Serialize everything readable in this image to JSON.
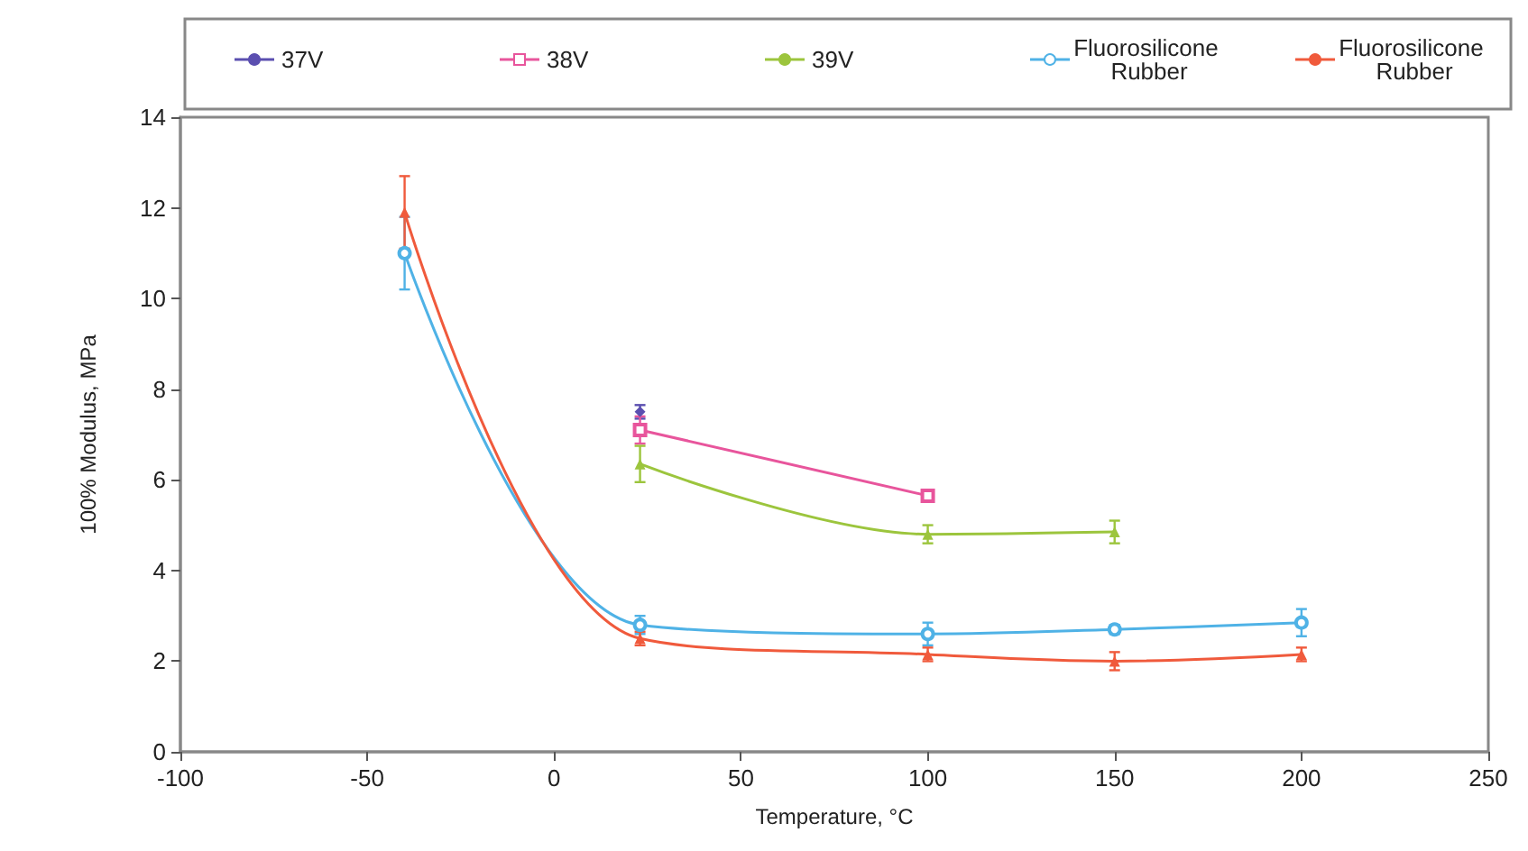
{
  "chart_data": {
    "type": "line",
    "xlabel": "Temperature, °C",
    "ylabel": "100% Modulus, MPa",
    "xlim": [
      -100,
      250
    ],
    "xticks": [
      -100,
      -50,
      0,
      50,
      100,
      150,
      200,
      250
    ],
    "ylim": [
      0,
      14
    ],
    "yticks": [
      0,
      2,
      4,
      6,
      8,
      10,
      12,
      14
    ],
    "grid": false,
    "legend": "top",
    "line_style": "solid",
    "series": [
      {
        "name": "37V",
        "color": "#5b4fb0",
        "marker": "diamond",
        "x": [
          23
        ],
        "values": [
          7.5
        ],
        "errors": [
          0.15
        ]
      },
      {
        "name": "38V",
        "color": "#e8559c",
        "marker": "square",
        "x": [
          23,
          100
        ],
        "values": [
          7.1,
          5.65
        ],
        "errors": [
          0.3,
          0.1
        ]
      },
      {
        "name": "39V",
        "color": "#9cc53d",
        "marker": "triangle",
        "x": [
          23,
          100,
          150
        ],
        "values": [
          6.35,
          4.8,
          4.85
        ],
        "errors": [
          0.4,
          0.2,
          0.25
        ]
      },
      {
        "name": "Fluorosilicone Rubber",
        "color": "#4fb2e6",
        "marker": "circle",
        "x": [
          -40,
          23,
          100,
          150,
          200
        ],
        "values": [
          11.0,
          2.8,
          2.6,
          2.7,
          2.85
        ],
        "errors": [
          0.8,
          0.2,
          0.25,
          0.1,
          0.3
        ]
      },
      {
        "name": "Fluorosilicone Rubber",
        "color": "#f05a3c",
        "marker": "triangle",
        "x": [
          -40,
          23,
          100,
          150,
          200
        ],
        "values": [
          11.9,
          2.5,
          2.15,
          2.0,
          2.15
        ],
        "errors": [
          0.8,
          0.15,
          0.15,
          0.2,
          0.15
        ]
      }
    ]
  }
}
